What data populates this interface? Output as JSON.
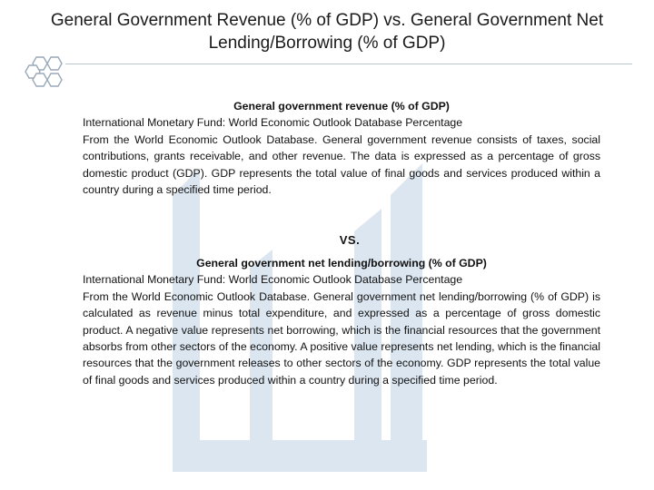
{
  "title": "General Government Revenue (% of GDP) vs. General Government Net Lending/Borrowing (% of GDP)",
  "colors": {
    "hex_outline": "#9aa9b8",
    "rule": "#b8c4d2",
    "watermark": "#dbe6f0"
  },
  "section1": {
    "heading": "General government revenue (% of GDP)",
    "source": "International Monetary Fund: World Economic Outlook Database Percentage",
    "body": "From the World Economic Outlook Database. General government revenue consists of taxes, social contributions, grants receivable, and other revenue. The data is expressed as a percentage of gross domestic product (GDP). GDP represents the total value of final goods and services produced within a country during a specified time period."
  },
  "vs": "VS.",
  "section2": {
    "heading": "General government net lending/borrowing (% of GDP)",
    "source": "International Monetary Fund: World Economic Outlook Database Percentage",
    "body": "From the World Economic Outlook Database. General government net lending/borrowing (% of GDP) is calculated as revenue minus total expenditure, and expressed as a percentage of gross domestic product. A negative value represents net borrowing, which is the financial resources that the government absorbs from other sectors of the economy. A positive value represents net lending, which is the financial resources that the government releases to other sectors of the economy. GDP represents the total value of final goods and services produced within a country during a specified time period."
  }
}
